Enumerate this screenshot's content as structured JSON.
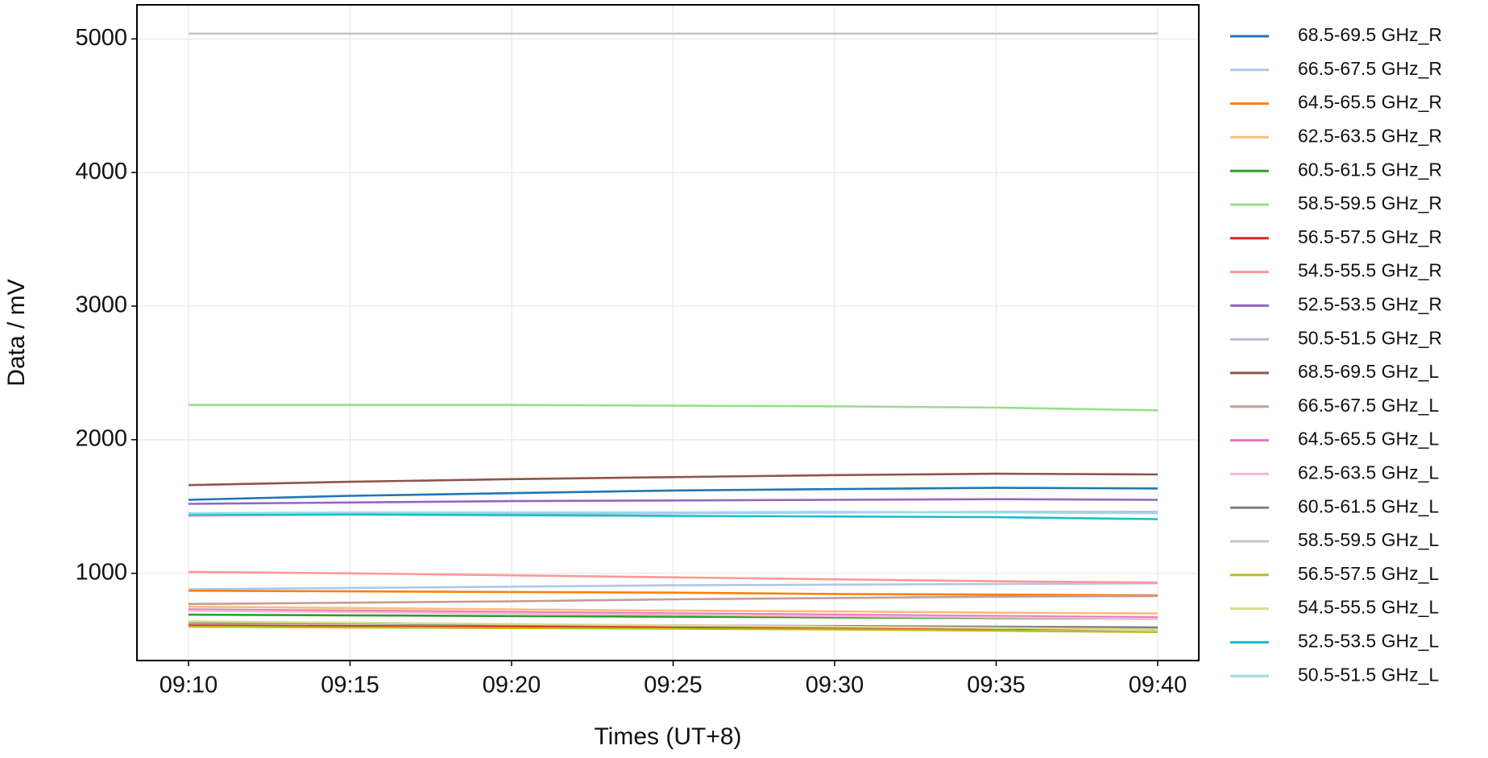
{
  "chart_data": {
    "type": "line",
    "x_label": "Times (UT+8)",
    "y_label": "Data / mV",
    "x": [
      "09:10",
      "09:15",
      "09:20",
      "09:25",
      "09:30",
      "09:35",
      "09:40"
    ],
    "ylim": [
      347,
      5255
    ],
    "yticks": [
      1000,
      2000,
      3000,
      4000,
      5000
    ],
    "grid": true,
    "legend": "outside-right",
    "series": [
      {
        "name": "68.5-69.5 GHz_R",
        "color": "#1f77b4",
        "values": [
          1550,
          1580,
          1600,
          1620,
          1630,
          1640,
          1635
        ]
      },
      {
        "name": "66.5-67.5 GHz_R",
        "color": "#aec7e8",
        "values": [
          880,
          890,
          900,
          910,
          915,
          920,
          925
        ]
      },
      {
        "name": "64.5-65.5 GHz_R",
        "color": "#ff7f0e",
        "values": [
          870,
          865,
          860,
          855,
          845,
          840,
          835
        ]
      },
      {
        "name": "62.5-63.5 GHz_R",
        "color": "#ffbb78",
        "values": [
          750,
          740,
          730,
          720,
          715,
          705,
          700
        ]
      },
      {
        "name": "60.5-61.5 GHz_R",
        "color": "#2ca02c",
        "values": [
          690,
          685,
          680,
          675,
          670,
          665,
          660
        ]
      },
      {
        "name": "58.5-59.5 GHz_R",
        "color": "#98df8a",
        "values": [
          2260,
          2260,
          2260,
          2255,
          2250,
          2240,
          2220
        ]
      },
      {
        "name": "56.5-57.5 GHz_R",
        "color": "#d62728",
        "values": [
          610,
          605,
          600,
          595,
          590,
          585,
          580
        ]
      },
      {
        "name": "54.5-55.5 GHz_R",
        "color": "#ff9896",
        "values": [
          1010,
          1000,
          985,
          970,
          955,
          940,
          930
        ]
      },
      {
        "name": "52.5-53.5 GHz_R",
        "color": "#9467bd",
        "values": [
          1520,
          1530,
          1540,
          1545,
          1550,
          1555,
          1550
        ]
      },
      {
        "name": "50.5-51.5 GHz_R",
        "color": "#c5b0d5",
        "values": [
          1430,
          1440,
          1445,
          1450,
          1455,
          1460,
          1460
        ]
      },
      {
        "name": "68.5-69.5 GHz_L",
        "color": "#8c564b",
        "values": [
          1660,
          1685,
          1705,
          1720,
          1735,
          1745,
          1740
        ]
      },
      {
        "name": "66.5-67.5 GHz_L",
        "color": "#c49c94",
        "values": [
          770,
          780,
          790,
          805,
          815,
          825,
          830
        ]
      },
      {
        "name": "64.5-65.5 GHz_L",
        "color": "#e377c2",
        "values": [
          730,
          720,
          710,
          700,
          690,
          680,
          670
        ]
      },
      {
        "name": "62.5-63.5 GHz_L",
        "color": "#f7b6d2",
        "values": [
          720,
          710,
          700,
          690,
          680,
          670,
          660
        ]
      },
      {
        "name": "60.5-61.5 GHz_L",
        "color": "#7f7f7f",
        "values": [
          630,
          625,
          615,
          610,
          605,
          600,
          595
        ]
      },
      {
        "name": "58.5-59.5 GHz_L",
        "color": "#c7c7c7",
        "values": [
          5040,
          5040,
          5040,
          5040,
          5040,
          5040,
          5040
        ]
      },
      {
        "name": "56.5-57.5 GHz_L",
        "color": "#bcbd22",
        "values": [
          600,
          595,
          590,
          585,
          580,
          570,
          560
        ]
      },
      {
        "name": "54.5-55.5 GHz_L",
        "color": "#dbdb8d",
        "values": [
          640,
          630,
          620,
          610,
          600,
          590,
          580
        ]
      },
      {
        "name": "52.5-53.5 GHz_L",
        "color": "#17becf",
        "values": [
          1440,
          1440,
          1435,
          1430,
          1425,
          1420,
          1405
        ]
      },
      {
        "name": "50.5-51.5 GHz_L",
        "color": "#9edae5",
        "values": [
          1450,
          1455,
          1455,
          1455,
          1460,
          1455,
          1450
        ]
      }
    ]
  }
}
